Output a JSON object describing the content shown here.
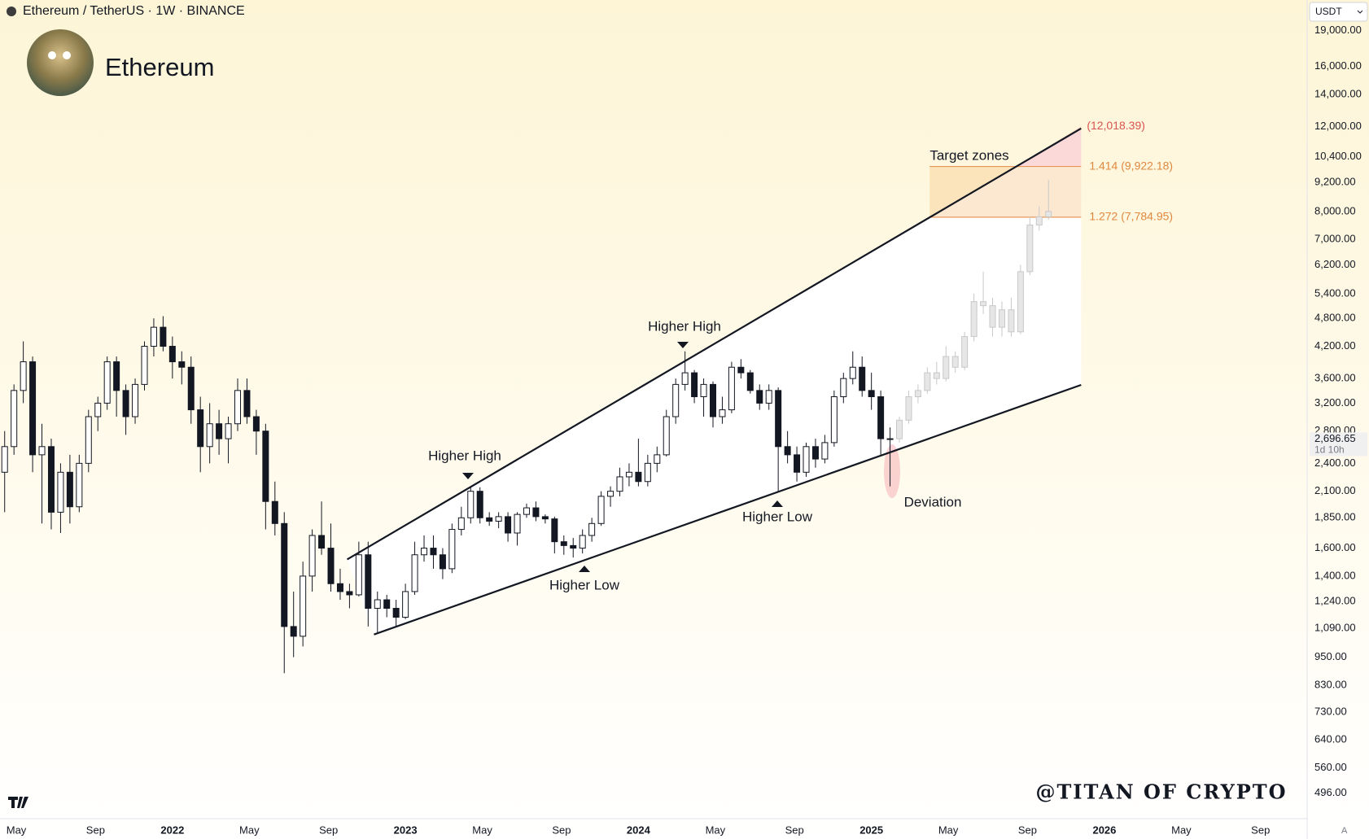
{
  "header": {
    "symbol": "Ethereum / TetherUS · 1W · BINANCE",
    "name": "Ethereum",
    "currency": "USDT",
    "auto": "A"
  },
  "watermark": "@TITAN OF CRYPTO",
  "chart_data": {
    "type": "candlestick",
    "log_scale": true,
    "xlim": [
      2021.26,
      2026.87
    ],
    "ylim": [
      439,
      21990
    ],
    "xticks": [
      {
        "value": 2021.33,
        "label": "May"
      },
      {
        "value": 2021.67,
        "label": "Sep"
      },
      2022,
      {
        "value": 2022.33,
        "label": "May"
      },
      {
        "value": 2022.67,
        "label": "Sep"
      },
      2023,
      {
        "value": 2023.33,
        "label": "May"
      },
      {
        "value": 2023.67,
        "label": "Sep"
      },
      2024,
      {
        "value": 2024.33,
        "label": "May"
      },
      {
        "value": 2024.67,
        "label": "Sep"
      },
      2025,
      {
        "value": 2025.33,
        "label": "May"
      },
      {
        "value": 2025.67,
        "label": "Sep"
      },
      2026,
      {
        "value": 2026.33,
        "label": "May"
      },
      {
        "value": 2026.67,
        "label": "Sep"
      }
    ],
    "yticks": [
      {
        "value": 19000,
        "label": "19,000.00"
      },
      {
        "value": 16000,
        "label": "16,000.00"
      },
      {
        "value": 14000,
        "label": "14,000.00"
      },
      {
        "value": 12000,
        "label": "12,000.00"
      },
      {
        "value": 10400,
        "label": "10,400.00"
      },
      {
        "value": 9200,
        "label": "9,200.00"
      },
      {
        "value": 8000,
        "label": "8,000.00"
      },
      {
        "value": 7000,
        "label": "7,000.00"
      },
      {
        "value": 6200,
        "label": "6,200.00"
      },
      {
        "value": 5400,
        "label": "5,400.00"
      },
      {
        "value": 4800,
        "label": "4,800.00"
      },
      {
        "value": 4200,
        "label": "4,200.00"
      },
      {
        "value": 3600,
        "label": "3,600.00"
      },
      {
        "value": 3200,
        "label": "3,200.00"
      },
      {
        "value": 2800,
        "label": "2,800.00"
      },
      {
        "value": 2400,
        "label": "2,400.00"
      },
      {
        "value": 2100,
        "label": "2,100.00"
      },
      {
        "value": 1850,
        "label": "1,850.00"
      },
      {
        "value": 1600,
        "label": "1,600.00"
      },
      {
        "value": 1400,
        "label": "1,400.00"
      },
      {
        "value": 1240,
        "label": "1,240.00"
      },
      {
        "value": 1090,
        "label": "1,090.00"
      },
      {
        "value": 950,
        "label": "950.00"
      },
      {
        "value": 830,
        "label": "830.00"
      },
      {
        "value": 730,
        "label": "730.00"
      },
      {
        "value": 640,
        "label": "640.00"
      },
      {
        "value": 560,
        "label": "560.00"
      },
      {
        "value": 496,
        "label": "496.00"
      }
    ],
    "last_price": {
      "value": 2696.65,
      "label": "2,696.65",
      "countdown": "1d 10h"
    },
    "candles": {
      "color": "#131722",
      "x": [
        2021.28,
        2021.32,
        2021.36,
        2021.4,
        2021.44,
        2021.48,
        2021.52,
        2021.56,
        2021.6,
        2021.64,
        2021.68,
        2021.72,
        2021.76,
        2021.8,
        2021.84,
        2021.88,
        2021.92,
        2021.96,
        2022.0,
        2022.04,
        2022.08,
        2022.12,
        2022.16,
        2022.2,
        2022.24,
        2022.28,
        2022.32,
        2022.36,
        2022.4,
        2022.44,
        2022.48,
        2022.52,
        2022.56,
        2022.6,
        2022.64,
        2022.68,
        2022.72,
        2022.76,
        2022.8,
        2022.84,
        2022.88,
        2022.92,
        2022.96,
        2023.0,
        2023.04,
        2023.08,
        2023.12,
        2023.16,
        2023.2,
        2023.24,
        2023.28,
        2023.32,
        2023.36,
        2023.4,
        2023.44,
        2023.48,
        2023.52,
        2023.56,
        2023.6,
        2023.64,
        2023.68,
        2023.72,
        2023.76,
        2023.8,
        2023.84,
        2023.88,
        2023.92,
        2023.96,
        2024.0,
        2024.04,
        2024.08,
        2024.12,
        2024.16,
        2024.2,
        2024.24,
        2024.28,
        2024.32,
        2024.36,
        2024.4,
        2024.44,
        2024.48,
        2024.52,
        2024.56,
        2024.6,
        2024.64,
        2024.68,
        2024.72,
        2024.76,
        2024.8,
        2024.84,
        2024.88,
        2024.92,
        2024.96,
        2025.0,
        2025.04,
        2025.08
      ],
      "open": [
        2300,
        2600,
        3400,
        3900,
        2500,
        2600,
        1900,
        2300,
        1950,
        2400,
        3000,
        3200,
        3900,
        3400,
        3000,
        3500,
        4200,
        4600,
        4200,
        3900,
        3800,
        3100,
        2600,
        2900,
        2700,
        2900,
        3400,
        3000,
        2800,
        2000,
        1800,
        1100,
        1050,
        1400,
        1700,
        1600,
        1350,
        1300,
        1280,
        1550,
        1200,
        1250,
        1200,
        1150,
        1300,
        1550,
        1600,
        1550,
        1450,
        1750,
        1850,
        2100,
        1850,
        1820,
        1860,
        1720,
        1880,
        1940,
        1860,
        1840,
        1650,
        1620,
        1600,
        1700,
        1800,
        2050,
        2100,
        2250,
        2300,
        2200,
        2400,
        2500,
        3000,
        3500,
        3700,
        3300,
        3500,
        3000,
        3100,
        3800,
        3700,
        3400,
        3200,
        3400,
        2600,
        2500,
        2300,
        2600,
        2450,
        2650,
        3300,
        3600,
        3800,
        3400,
        3300,
        2700
      ],
      "high": [
        2800,
        3500,
        4300,
        4000,
        2900,
        2700,
        2400,
        2500,
        2500,
        3100,
        3300,
        4000,
        4000,
        3500,
        3600,
        4300,
        4800,
        4850,
        4400,
        4100,
        4000,
        3300,
        3200,
        3100,
        3000,
        3600,
        3600,
        3100,
        2900,
        2200,
        1900,
        1300,
        1500,
        1750,
        2000,
        1800,
        1450,
        1350,
        1650,
        1650,
        1300,
        1280,
        1250,
        1350,
        1650,
        1700,
        1700,
        1600,
        1800,
        1950,
        2150,
        2140,
        1900,
        1900,
        1900,
        1900,
        1980,
        2000,
        1880,
        1860,
        1700,
        1680,
        1750,
        1850,
        2100,
        2150,
        2350,
        2400,
        2700,
        2500,
        2600,
        3100,
        3600,
        4100,
        3750,
        3600,
        3550,
        3300,
        3900,
        3950,
        3750,
        3500,
        3500,
        3450,
        2800,
        2600,
        2650,
        2700,
        2750,
        3400,
        3700,
        4100,
        4000,
        3700,
        3400,
        2850
      ],
      "low": [
        1900,
        2500,
        3200,
        2300,
        1800,
        1750,
        1720,
        1800,
        1900,
        2300,
        2800,
        3100,
        3000,
        2750,
        2900,
        3400,
        4000,
        4100,
        3600,
        3500,
        2900,
        2300,
        2400,
        2500,
        2400,
        2800,
        2900,
        2500,
        1750,
        1700,
        880,
        950,
        1000,
        1300,
        1550,
        1300,
        1250,
        1200,
        1270,
        1100,
        1070,
        1150,
        1100,
        1140,
        1280,
        1500,
        1450,
        1380,
        1420,
        1700,
        1800,
        1800,
        1780,
        1760,
        1650,
        1620,
        1850,
        1820,
        1800,
        1560,
        1550,
        1530,
        1560,
        1650,
        1780,
        1950,
        2050,
        2150,
        2150,
        2150,
        2300,
        2480,
        2900,
        3400,
        3200,
        3000,
        2850,
        2900,
        3050,
        3600,
        3350,
        3100,
        3100,
        2100,
        2400,
        2200,
        2250,
        2350,
        2400,
        2600,
        3200,
        3500,
        3300,
        3100,
        2500,
        2150
      ],
      "close": [
        2600,
        3400,
        3900,
        2500,
        2600,
        1900,
        2300,
        1950,
        2400,
        3000,
        3200,
        3900,
        3400,
        3000,
        3500,
        4200,
        4600,
        4200,
        3900,
        3800,
        3100,
        2600,
        2900,
        2700,
        2900,
        3400,
        3000,
        2800,
        2000,
        1800,
        1100,
        1050,
        1400,
        1700,
        1600,
        1350,
        1300,
        1280,
        1550,
        1200,
        1250,
        1200,
        1150,
        1300,
        1550,
        1600,
        1550,
        1450,
        1750,
        1850,
        2100,
        1850,
        1820,
        1860,
        1720,
        1880,
        1940,
        1860,
        1840,
        1650,
        1620,
        1600,
        1700,
        1800,
        2050,
        2100,
        2250,
        2300,
        2200,
        2400,
        2500,
        3000,
        3500,
        3700,
        3300,
        3500,
        3000,
        3100,
        3800,
        3700,
        3400,
        3200,
        3400,
        2600,
        2500,
        2300,
        2600,
        2450,
        2650,
        3300,
        3600,
        3800,
        3400,
        3300,
        2700,
        2700
      ]
    },
    "projection": {
      "color": "#c8c8c8",
      "x": [
        2025.12,
        2025.16,
        2025.2,
        2025.24,
        2025.28,
        2025.32,
        2025.36,
        2025.4,
        2025.44,
        2025.48,
        2025.52,
        2025.56,
        2025.6,
        2025.64,
        2025.68,
        2025.72,
        2025.76
      ],
      "open": [
        2700,
        2950,
        3300,
        3400,
        3700,
        3600,
        4000,
        3800,
        4400,
        5200,
        5100,
        4600,
        5000,
        4500,
        6000,
        7500,
        7800
      ],
      "high": [
        3000,
        3400,
        3500,
        3800,
        3900,
        4200,
        4100,
        4500,
        5400,
        6000,
        5300,
        5200,
        5300,
        6200,
        7800,
        8200,
        9300
      ],
      "low": [
        2650,
        2900,
        3200,
        3350,
        3500,
        3550,
        3700,
        3750,
        4300,
        4900,
        4400,
        4400,
        4400,
        4450,
        5900,
        7300,
        7700
      ],
      "close": [
        2950,
        3300,
        3400,
        3700,
        3600,
        4000,
        3800,
        4400,
        5200,
        5100,
        4600,
        5000,
        4500,
        6000,
        7500,
        7800,
        8000
      ]
    },
    "trendlines": [
      {
        "x": [
          2022.75,
          2025.9
        ],
        "y": [
          1516,
          11900
        ]
      },
      {
        "x": [
          2022.865,
          2025.9
        ],
        "y": [
          1059,
          3492
        ]
      }
    ],
    "target_zone": {
      "label": "Target zones",
      "x": [
        2025.25,
        2025.9
      ],
      "top": {
        "value": 12018.39,
        "label": "(12,018.39)"
      },
      "levels": [
        {
          "value": 9922.18,
          "label": "1.414 (9,922.18)"
        },
        {
          "value": 7784.95,
          "label": "1.272 (7,784.95)"
        }
      ]
    },
    "annotations": [
      "Higher High",
      "Higher High",
      "Higher Low",
      "Higher Low",
      "Deviation"
    ]
  }
}
